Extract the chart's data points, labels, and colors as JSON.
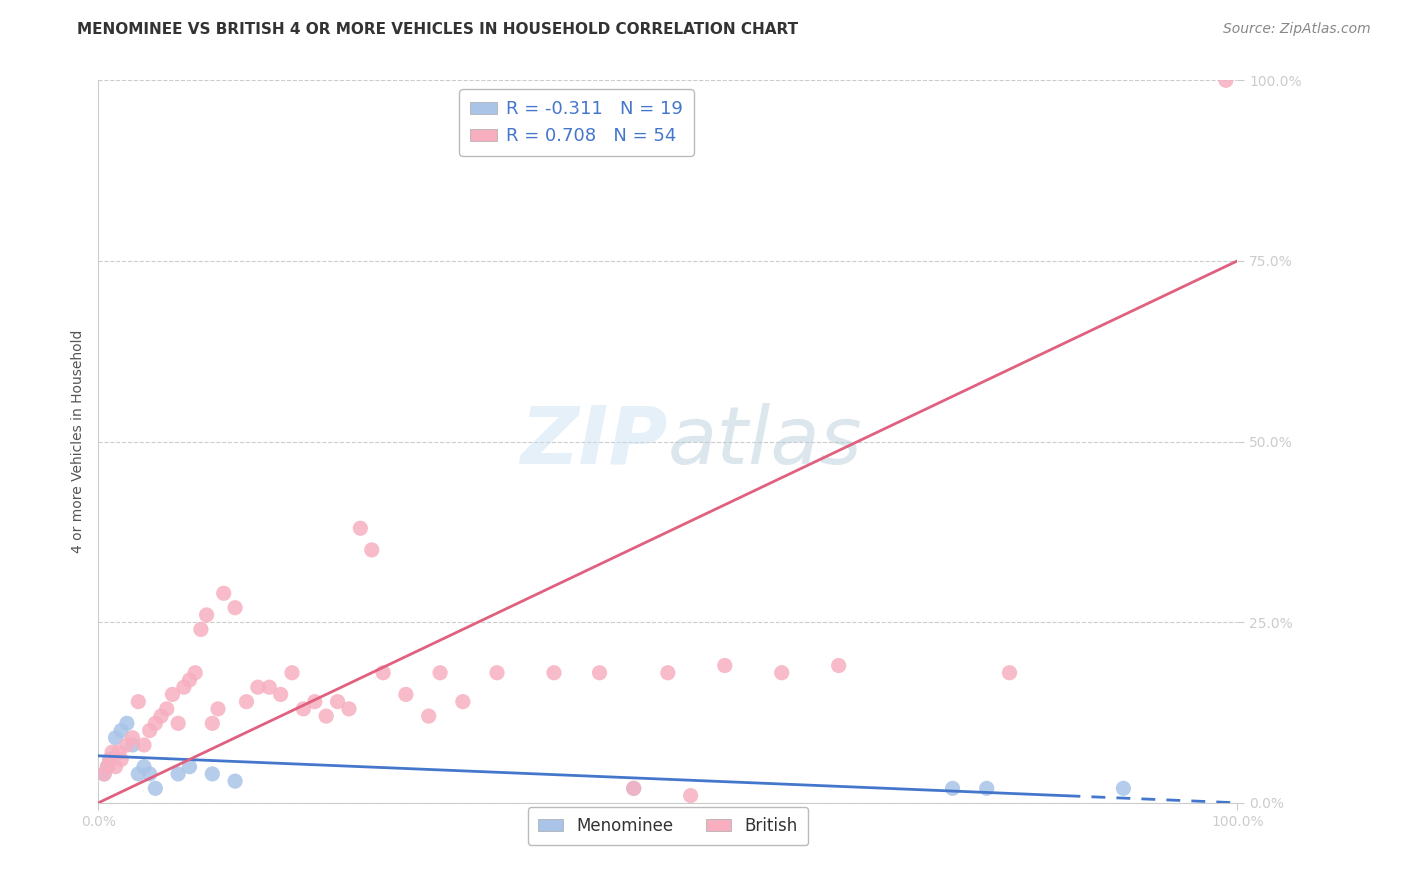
{
  "title": "MENOMINEE VS BRITISH 4 OR MORE VEHICLES IN HOUSEHOLD CORRELATION CHART",
  "source": "Source: ZipAtlas.com",
  "ylabel": "4 or more Vehicles in Household",
  "watermark_zip": "ZIP",
  "watermark_atlas": "atlas",
  "xlim": [
    0,
    1
  ],
  "ylim": [
    0,
    1
  ],
  "ytick_positions": [
    0.0,
    0.25,
    0.5,
    0.75,
    1.0
  ],
  "ytick_labels": [
    "0.0%",
    "25.0%",
    "50.0%",
    "75.0%",
    "100.0%"
  ],
  "xtick_positions": [
    0.0,
    1.0
  ],
  "xtick_labels": [
    "0.0%",
    "100.0%"
  ],
  "grid_color": "#cccccc",
  "background_color": "#ffffff",
  "menominee_color": "#aac4e8",
  "british_color": "#f7afc0",
  "menominee_line_color": "#4477cc",
  "british_line_color": "#e06080",
  "menominee_R": -0.311,
  "menominee_N": 19,
  "british_R": 0.708,
  "british_N": 54,
  "menominee_scatter_x": [
    0.005,
    0.008,
    0.01,
    0.015,
    0.02,
    0.025,
    0.03,
    0.035,
    0.04,
    0.045,
    0.05,
    0.07,
    0.08,
    0.1,
    0.12,
    0.47,
    0.75,
    0.78,
    0.9
  ],
  "menominee_scatter_y": [
    0.04,
    0.05,
    0.06,
    0.09,
    0.1,
    0.11,
    0.08,
    0.04,
    0.05,
    0.04,
    0.02,
    0.04,
    0.05,
    0.04,
    0.03,
    0.02,
    0.02,
    0.02,
    0.02
  ],
  "british_scatter_x": [
    0.005,
    0.008,
    0.01,
    0.012,
    0.015,
    0.018,
    0.02,
    0.025,
    0.03,
    0.035,
    0.04,
    0.045,
    0.05,
    0.055,
    0.06,
    0.065,
    0.07,
    0.075,
    0.08,
    0.085,
    0.09,
    0.095,
    0.1,
    0.105,
    0.11,
    0.12,
    0.13,
    0.14,
    0.15,
    0.16,
    0.17,
    0.18,
    0.19,
    0.2,
    0.21,
    0.22,
    0.23,
    0.24,
    0.25,
    0.27,
    0.29,
    0.3,
    0.32,
    0.35,
    0.4,
    0.44,
    0.47,
    0.5,
    0.52,
    0.55,
    0.6,
    0.65,
    0.8,
    0.99
  ],
  "british_scatter_y": [
    0.04,
    0.05,
    0.06,
    0.07,
    0.05,
    0.07,
    0.06,
    0.08,
    0.09,
    0.14,
    0.08,
    0.1,
    0.11,
    0.12,
    0.13,
    0.15,
    0.11,
    0.16,
    0.17,
    0.18,
    0.24,
    0.26,
    0.11,
    0.13,
    0.29,
    0.27,
    0.14,
    0.16,
    0.16,
    0.15,
    0.18,
    0.13,
    0.14,
    0.12,
    0.14,
    0.13,
    0.38,
    0.35,
    0.18,
    0.15,
    0.12,
    0.18,
    0.14,
    0.18,
    0.18,
    0.18,
    0.02,
    0.18,
    0.01,
    0.19,
    0.18,
    0.19,
    0.18,
    1.0
  ],
  "menominee_trendline_x": [
    0.0,
    1.0
  ],
  "menominee_trendline_y": [
    0.065,
    0.0
  ],
  "menominee_trendline_dashed_start": 0.85,
  "british_trendline_x": [
    0.0,
    1.0
  ],
  "british_trendline_y": [
    0.0,
    0.75
  ],
  "legend_label_menominee": "Menominee",
  "legend_label_british": "British",
  "title_fontsize": 11,
  "axis_label_fontsize": 10,
  "tick_fontsize": 10,
  "source_fontsize": 10,
  "legend_fontsize": 13,
  "tick_color": "#4477cc"
}
